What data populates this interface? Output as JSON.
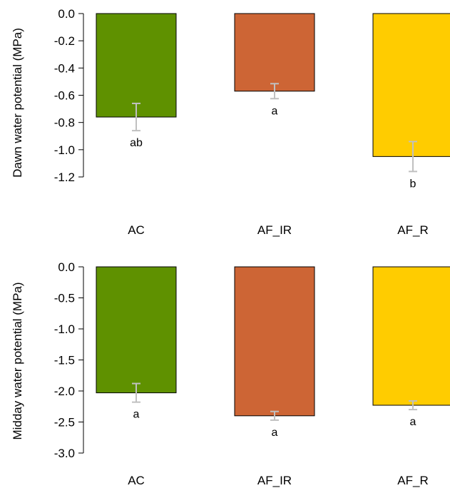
{
  "chart_data": [
    {
      "type": "bar",
      "ylabel": "Dawn water potential (MPa)",
      "categories": [
        "AC",
        "AF_IR",
        "AF_R"
      ],
      "values": [
        -0.76,
        -0.57,
        -1.05
      ],
      "error": [
        0.1,
        0.055,
        0.11
      ],
      "significance": [
        "ab",
        "a",
        "b"
      ],
      "colors": [
        "#5f9100",
        "#cd6535",
        "#ffcc00"
      ],
      "ylim": [
        -1.2,
        0.0
      ],
      "yticks": [
        0.0,
        -0.2,
        -0.4,
        -0.6,
        -0.8,
        -1.0,
        -1.2
      ],
      "ytick_labels": [
        "0.0",
        "-0.2",
        "-0.4",
        "-0.6",
        "-0.8",
        "-1.0",
        "-1.2"
      ],
      "grid": false,
      "legend": "none"
    },
    {
      "type": "bar",
      "ylabel": "Midday water potential (MPa)",
      "categories": [
        "AC",
        "AF_IR",
        "AF_R"
      ],
      "values": [
        -2.03,
        -2.4,
        -2.23
      ],
      "error": [
        0.15,
        0.07,
        0.07
      ],
      "significance": [
        "a",
        "a",
        "a"
      ],
      "colors": [
        "#5f9100",
        "#cd6535",
        "#ffcc00"
      ],
      "ylim": [
        -3.0,
        0.0
      ],
      "yticks": [
        0.0,
        -0.5,
        -1.0,
        -1.5,
        -2.0,
        -2.5,
        -3.0
      ],
      "ytick_labels": [
        "0.0",
        "-0.5",
        "-1.0",
        "-1.5",
        "-2.0",
        "-2.5",
        "-3.0"
      ],
      "grid": false,
      "legend": "none"
    }
  ]
}
